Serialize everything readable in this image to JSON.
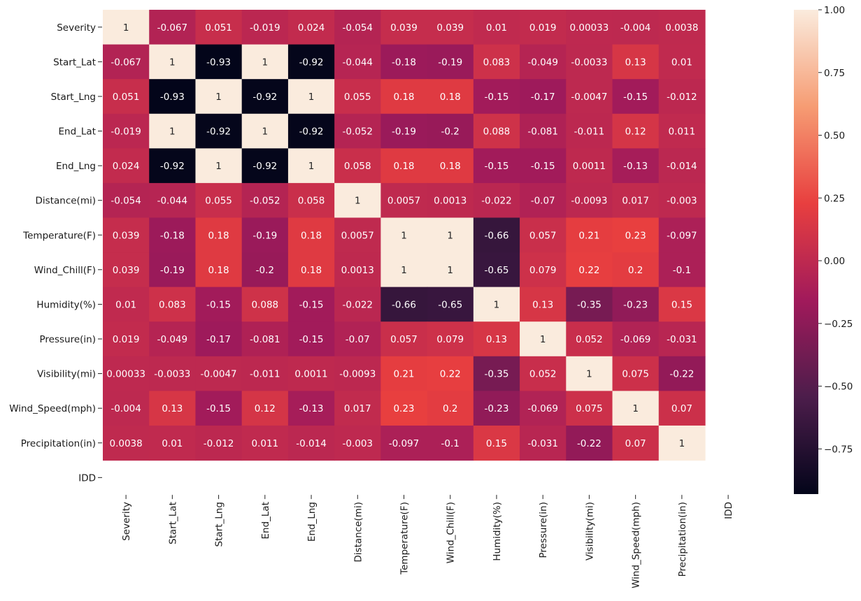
{
  "chart_data": {
    "type": "heatmap",
    "title": "",
    "xlabel": "",
    "ylabel": "",
    "labels": [
      "Severity",
      "Start_Lat",
      "Start_Lng",
      "End_Lat",
      "End_Lng",
      "Distance(mi)",
      "Temperature(F)",
      "Wind_Chill(F)",
      "Humidity(%)",
      "Pressure(in)",
      "Visibility(mi)",
      "Wind_Speed(mph)",
      "Precipitation(in)",
      "IDD"
    ],
    "matrix": [
      [
        "1",
        "-0.067",
        "0.051",
        "-0.019",
        "0.024",
        "-0.054",
        "0.039",
        "0.039",
        "0.01",
        "0.019",
        "0.00033",
        "-0.004",
        "0.0038",
        null
      ],
      [
        "-0.067",
        "1",
        "-0.93",
        "1",
        "-0.92",
        "-0.044",
        "-0.18",
        "-0.19",
        "0.083",
        "-0.049",
        "-0.0033",
        "0.13",
        "0.01",
        null
      ],
      [
        "0.051",
        "-0.93",
        "1",
        "-0.92",
        "1",
        "0.055",
        "0.18",
        "0.18",
        "-0.15",
        "-0.17",
        "-0.0047",
        "-0.15",
        "-0.012",
        null
      ],
      [
        "-0.019",
        "1",
        "-0.92",
        "1",
        "-0.92",
        "-0.052",
        "-0.19",
        "-0.2",
        "0.088",
        "-0.081",
        "-0.011",
        "0.12",
        "0.011",
        null
      ],
      [
        "0.024",
        "-0.92",
        "1",
        "-0.92",
        "1",
        "0.058",
        "0.18",
        "0.18",
        "-0.15",
        "-0.15",
        "0.0011",
        "-0.13",
        "-0.014",
        null
      ],
      [
        "-0.054",
        "-0.044",
        "0.055",
        "-0.052",
        "0.058",
        "1",
        "0.0057",
        "0.0013",
        "-0.022",
        "-0.07",
        "-0.0093",
        "0.017",
        "-0.003",
        null
      ],
      [
        "0.039",
        "-0.18",
        "0.18",
        "-0.19",
        "0.18",
        "0.0057",
        "1",
        "1",
        "-0.66",
        "0.057",
        "0.21",
        "0.23",
        "-0.097",
        null
      ],
      [
        "0.039",
        "-0.19",
        "0.18",
        "-0.2",
        "0.18",
        "0.0013",
        "1",
        "1",
        "-0.65",
        "0.079",
        "0.22",
        "0.2",
        "-0.1",
        null
      ],
      [
        "0.01",
        "0.083",
        "-0.15",
        "0.088",
        "-0.15",
        "-0.022",
        "-0.66",
        "-0.65",
        "1",
        "0.13",
        "-0.35",
        "-0.23",
        "0.15",
        null
      ],
      [
        "0.019",
        "-0.049",
        "-0.17",
        "-0.081",
        "-0.15",
        "-0.07",
        "0.057",
        "0.079",
        "0.13",
        "1",
        "0.052",
        "-0.069",
        "-0.031",
        null
      ],
      [
        "0.00033",
        "-0.0033",
        "-0.0047",
        "-0.011",
        "0.0011",
        "-0.0093",
        "0.21",
        "0.22",
        "-0.35",
        "0.052",
        "1",
        "0.075",
        "-0.22",
        null
      ],
      [
        "-0.004",
        "0.13",
        "-0.15",
        "0.12",
        "-0.13",
        "0.017",
        "0.23",
        "0.2",
        "-0.23",
        "-0.069",
        "0.075",
        "1",
        "0.07",
        null
      ],
      [
        "0.0038",
        "0.01",
        "-0.012",
        "0.011",
        "-0.014",
        "-0.003",
        "-0.097",
        "-0.1",
        "0.15",
        "-0.031",
        "-0.22",
        "0.07",
        "1",
        null
      ],
      [
        null,
        null,
        null,
        null,
        null,
        null,
        null,
        null,
        null,
        null,
        null,
        null,
        null,
        null
      ]
    ],
    "colorbar": {
      "vmin": -0.93,
      "vmax": 1.0,
      "ticks": [
        "1.00",
        "0.75",
        "0.50",
        "0.25",
        "0.00",
        "−0.25",
        "−0.50",
        "−0.75"
      ],
      "colormap": "rocket",
      "stops": [
        "#03051a",
        "#4c1d4b",
        "#a11a5b",
        "#e83f3f",
        "#f69c73",
        "#faebdd"
      ]
    },
    "grid": false,
    "legend": "right colorbar"
  }
}
